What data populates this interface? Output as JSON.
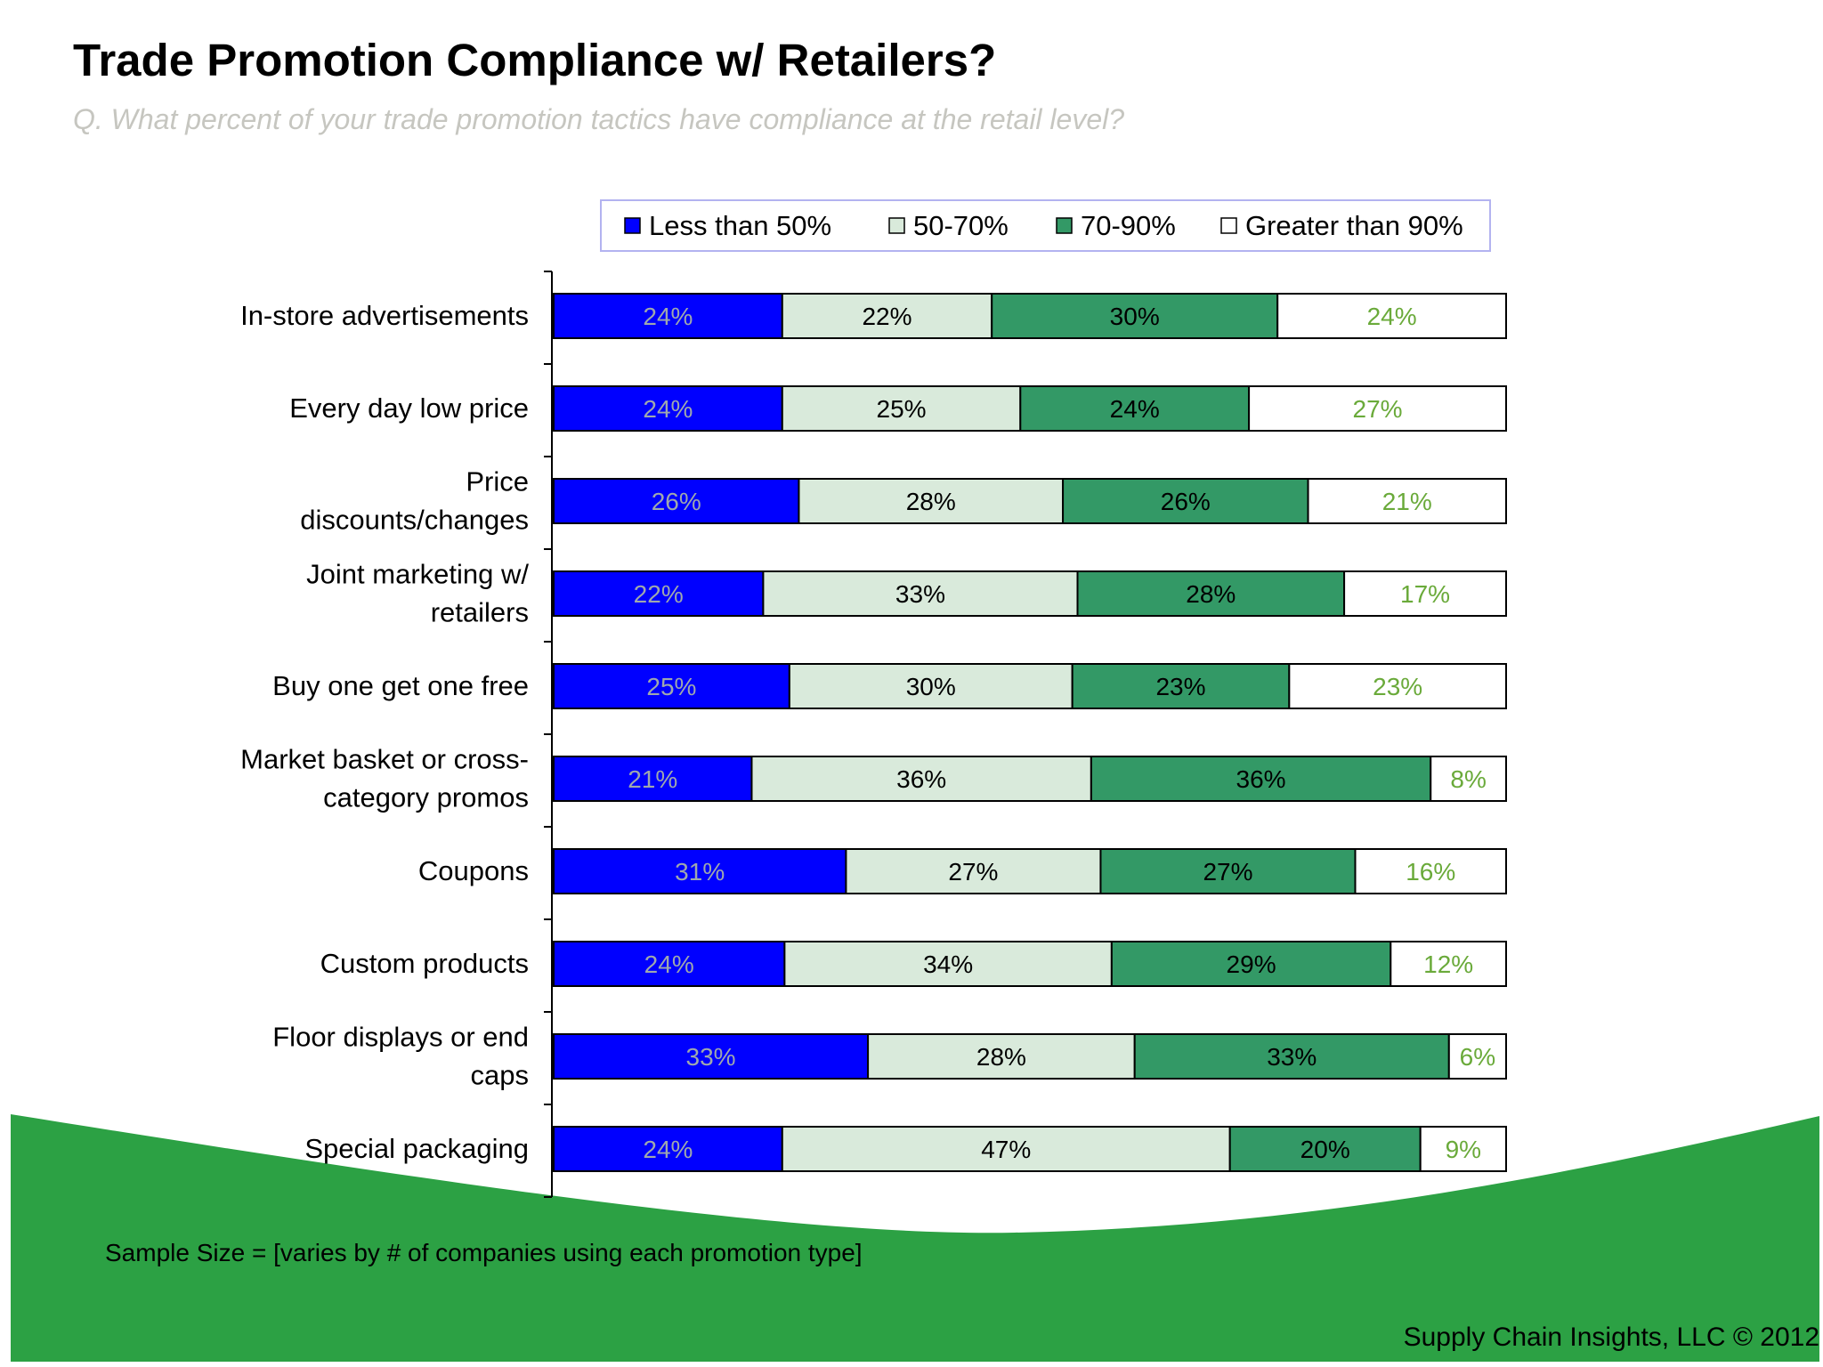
{
  "title": "Trade Promotion Compliance w/ Retailers?",
  "subtitle": "Q. What percent of your trade promotion tactics have compliance at the retail level?",
  "footnote": "Sample Size = [varies by # of companies using each promotion type]",
  "credit": "Supply Chain Insights, LLC © 2012",
  "colors": {
    "background_wave": "#2ca144",
    "border": "#000000",
    "legend_border": "#b3b3f0"
  },
  "chart_data": {
    "type": "bar",
    "orientation": "horizontal",
    "stacked": "100%",
    "legend_position": "top",
    "grid": false,
    "xlim": [
      0,
      100
    ],
    "unit": "%",
    "categories": [
      "In-store advertisements",
      "Every day low price",
      "Price discounts/changes",
      "Joint marketing w/ retailers",
      "Buy one get one free",
      "Market basket or cross-category promos",
      "Coupons",
      "Custom products",
      "Floor displays or end caps",
      "Special packaging"
    ],
    "category_lines": [
      [
        "In-store advertisements"
      ],
      [
        "Every day low price"
      ],
      [
        "Price",
        "discounts/changes"
      ],
      [
        "Joint marketing w/",
        "retailers"
      ],
      [
        "Buy one get one free"
      ],
      [
        "Market basket or cross-",
        "category promos"
      ],
      [
        "Coupons"
      ],
      [
        "Custom products"
      ],
      [
        "Floor displays or end",
        "caps"
      ],
      [
        "Special packaging"
      ]
    ],
    "series": [
      {
        "name": "Less than 50%",
        "color": "#0000ff",
        "label_color": "#9fa8ad",
        "values": [
          24,
          24,
          26,
          22,
          25,
          21,
          31,
          24,
          33,
          24
        ]
      },
      {
        "name": "50-70%",
        "color": "#d9eadb",
        "label_color": "#000000",
        "values": [
          22,
          25,
          28,
          33,
          30,
          36,
          27,
          34,
          28,
          47
        ]
      },
      {
        "name": "70-90%",
        "color": "#339966",
        "label_color": "#000000",
        "values": [
          30,
          24,
          26,
          28,
          23,
          36,
          27,
          29,
          33,
          20
        ]
      },
      {
        "name": "Greater than 90%",
        "color": "#ffffff",
        "label_color": "#6aaa3a",
        "values": [
          24,
          27,
          21,
          17,
          23,
          8,
          16,
          12,
          6,
          9
        ]
      }
    ]
  }
}
